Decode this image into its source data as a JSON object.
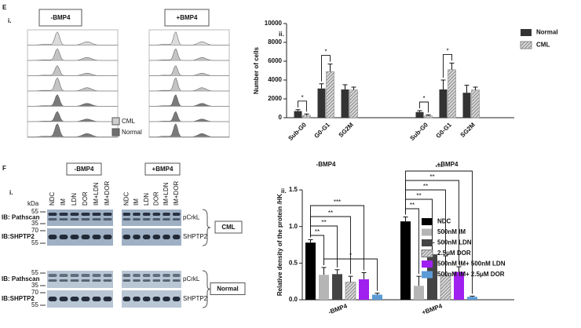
{
  "figure": {
    "panel_e": "E",
    "panel_f": "F",
    "e_i": "i.",
    "e_ii": "ii.",
    "f_i": "i.",
    "f_ii": "ii.",
    "flow": {
      "conditions": [
        "-BMP4",
        "+BMP4"
      ],
      "legend": [
        "CML",
        "Normal"
      ]
    },
    "blot": {
      "conditions": [
        "-BMP4",
        "+BMP4"
      ],
      "lanes": [
        "NDC",
        "IM",
        "LDN",
        "DOR",
        "IM+LDN",
        "IM+DOR"
      ],
      "kda": "kDa",
      "rows": [
        {
          "antibody": "IB: Pathscan",
          "markers": [
            55,
            35
          ],
          "protein": "pCrkL"
        },
        {
          "antibody": "IB:SHPTP2",
          "markers": [
            70,
            55
          ],
          "protein": "SHPTP2"
        },
        {
          "antibody": "IB: Pathscan",
          "markers": [
            55,
            35
          ],
          "protein": "pCrkL"
        },
        {
          "antibody": "IB:SHPTP2",
          "markers": [
            70,
            55
          ],
          "protein": "SHPTP2"
        }
      ],
      "cell_lines": [
        "CML",
        "Normal"
      ]
    }
  },
  "chart_data": [
    {
      "type": "bar",
      "ylabel": "Number of cells",
      "categories": [
        "Sub-G0",
        "G0-G1",
        "SG2M",
        "Sub-G0",
        "G0-G1",
        "SG2M"
      ],
      "groups": [
        "-BMP4",
        "+BMP4"
      ],
      "ylim": [
        0,
        10000
      ],
      "yticks": [
        0,
        2000,
        4000,
        6000,
        8000,
        10000
      ],
      "series": [
        {
          "name": "Normal",
          "color": "#333333",
          "values": [
            700,
            3100,
            3000,
            600,
            3000,
            2650
          ],
          "errors": [
            150,
            500,
            500,
            150,
            1000,
            800
          ]
        },
        {
          "name": "CML",
          "color": "#888888",
          "pattern": "hatch",
          "values": [
            250,
            4900,
            2950,
            200,
            5100,
            2950
          ],
          "errors": [
            150,
            800,
            300,
            100,
            700,
            300
          ]
        }
      ],
      "annotations": [
        "*",
        "*",
        "*",
        "*"
      ]
    },
    {
      "type": "bar",
      "ylabel": "Relative density of the protein /HK",
      "categories": [
        "-BMP4",
        "+BMP4"
      ],
      "ylim": [
        0,
        1.5
      ],
      "yticks": [
        {
          "value": 0,
          "label": "0.0"
        },
        {
          "value": 0.5,
          "label": "0.5"
        },
        {
          "value": 1,
          "label": "1.0"
        },
        {
          "value": 1.5,
          "label": "1.5"
        }
      ],
      "series": [
        {
          "name": "NDC",
          "color": "#000000",
          "values": [
            0.78,
            1.07
          ],
          "errors": [
            0.04,
            0.06
          ]
        },
        {
          "name": "500nM IM",
          "color": "#b5b5b5",
          "values": [
            0.34,
            0.19
          ],
          "errors": [
            0.1,
            0.13
          ]
        },
        {
          "name": "500nM LDN",
          "color": "#444444",
          "values": [
            0.35,
            0.62
          ],
          "errors": [
            0.06,
            0.16
          ]
        },
        {
          "name": "2.5μM DOR",
          "color": "#777777",
          "pattern": "hatch",
          "values": [
            0.24,
            0.33
          ],
          "errors": [
            0.08,
            0.27
          ]
        },
        {
          "name": "500nM IM+ 500nM LDN",
          "color": "#a020f0",
          "values": [
            0.28,
            0.38
          ],
          "errors": [
            0.09,
            0.07
          ]
        },
        {
          "name": "500nM IM+ 2.5μM DOR",
          "color": "#5b9bd5",
          "values": [
            0.07,
            0.04
          ],
          "errors": [
            0.02,
            0.01
          ]
        }
      ],
      "annotations": [
        "**",
        "**",
        "**",
        "***",
        "*",
        "**",
        "**",
        "**",
        "**",
        "***"
      ]
    }
  ]
}
